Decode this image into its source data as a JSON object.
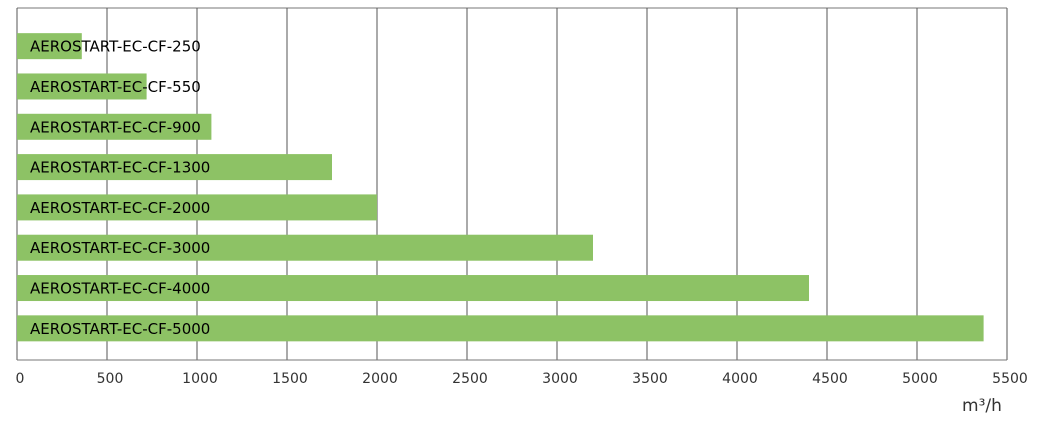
{
  "chart_data": {
    "type": "bar",
    "orientation": "horizontal",
    "categories": [
      "AEROSTART-EC-CF-250",
      "AEROSTART-EC-CF-550",
      "AEROSTART-EC-CF-900",
      "AEROSTART-EC-CF-1300",
      "AEROSTART-EC-CF-2000",
      "AEROSTART-EC-CF-3000",
      "AEROSTART-EC-CF-4000",
      "AEROSTART-EC-CF-5000"
    ],
    "values": [
      360,
      720,
      1080,
      1750,
      2000,
      3200,
      4400,
      5370
    ],
    "color": "#8dc265",
    "xlim": [
      0,
      5500
    ],
    "xticks": [
      0,
      500,
      1000,
      1500,
      2000,
      2500,
      3000,
      3500,
      4000,
      4500,
      5000,
      5500
    ],
    "x_label": "m³/h",
    "grid": true
  }
}
